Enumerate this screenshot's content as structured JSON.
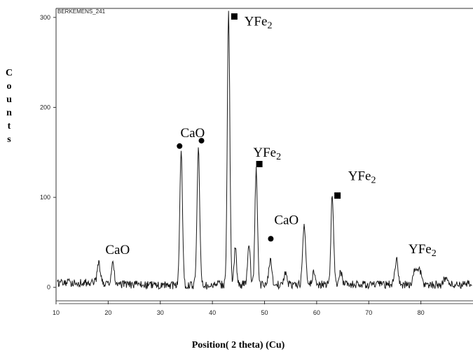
{
  "chart_data": {
    "type": "line",
    "sample_label": "BERKEMENS_241",
    "xlabel": "Position( 2 theta) (Cu)",
    "ylabel": "Counts",
    "xlim": [
      10,
      90
    ],
    "ylim": [
      -15,
      310
    ],
    "x_ticks": [
      "10",
      "20",
      "30",
      "40",
      "50",
      "60",
      "70",
      "80"
    ],
    "y_ticks": [
      "0",
      "100",
      "200",
      "300"
    ],
    "peaks": [
      {
        "x": 18.2,
        "y": 22,
        "w": 0.3
      },
      {
        "x": 20.9,
        "y": 28,
        "w": 0.22
      },
      {
        "x": 34.0,
        "y": 148,
        "w": 0.26
      },
      {
        "x": 37.3,
        "y": 152,
        "w": 0.26
      },
      {
        "x": 43.1,
        "y": 305,
        "w": 0.24
      },
      {
        "x": 44.4,
        "y": 43,
        "w": 0.22
      },
      {
        "x": 47.0,
        "y": 44,
        "w": 0.26
      },
      {
        "x": 48.4,
        "y": 128,
        "w": 0.24
      },
      {
        "x": 51.1,
        "y": 28,
        "w": 0.28
      },
      {
        "x": 54.0,
        "y": 12,
        "w": 0.3
      },
      {
        "x": 57.6,
        "y": 65,
        "w": 0.28
      },
      {
        "x": 59.5,
        "y": 14,
        "w": 0.3
      },
      {
        "x": 63.0,
        "y": 99,
        "w": 0.26
      },
      {
        "x": 64.6,
        "y": 14,
        "w": 0.3
      },
      {
        "x": 75.3,
        "y": 28,
        "w": 0.3
      },
      {
        "x": 78.9,
        "y": 16,
        "w": 0.35
      },
      {
        "x": 79.7,
        "y": 17,
        "w": 0.35
      },
      {
        "x": 84.8,
        "y": 8,
        "w": 0.35
      }
    ],
    "annotations": [
      {
        "text": "CaO",
        "x": 21.8,
        "y": 37,
        "marker": "none",
        "mx": 0,
        "my": 0
      },
      {
        "text": "CaO",
        "x": 36.2,
        "y": 167,
        "marker": "circle",
        "mx": 33.7,
        "my": 157
      },
      {
        "text": "",
        "x": 0,
        "y": 0,
        "marker": "circle",
        "mx": 37.9,
        "my": 163
      },
      {
        "text": "YFe2",
        "x": 48.8,
        "y": 291,
        "marker": "square",
        "mx": 44.2,
        "my": 301
      },
      {
        "text": "YFe2",
        "x": 50.5,
        "y": 145,
        "marker": "square",
        "mx": 49.0,
        "my": 137
      },
      {
        "text": "CaO",
        "x": 54.2,
        "y": 70,
        "marker": "circle",
        "mx": 51.2,
        "my": 54
      },
      {
        "text": "YFe2",
        "x": 68.7,
        "y": 119,
        "marker": "square",
        "mx": 64.0,
        "my": 102
      },
      {
        "text": "YFe2",
        "x": 80.3,
        "y": 38,
        "marker": "none",
        "mx": 0,
        "my": 0
      }
    ],
    "colors": {
      "trace": "#1a1a1a",
      "axis": "#333333",
      "annotation": "#000000"
    }
  }
}
